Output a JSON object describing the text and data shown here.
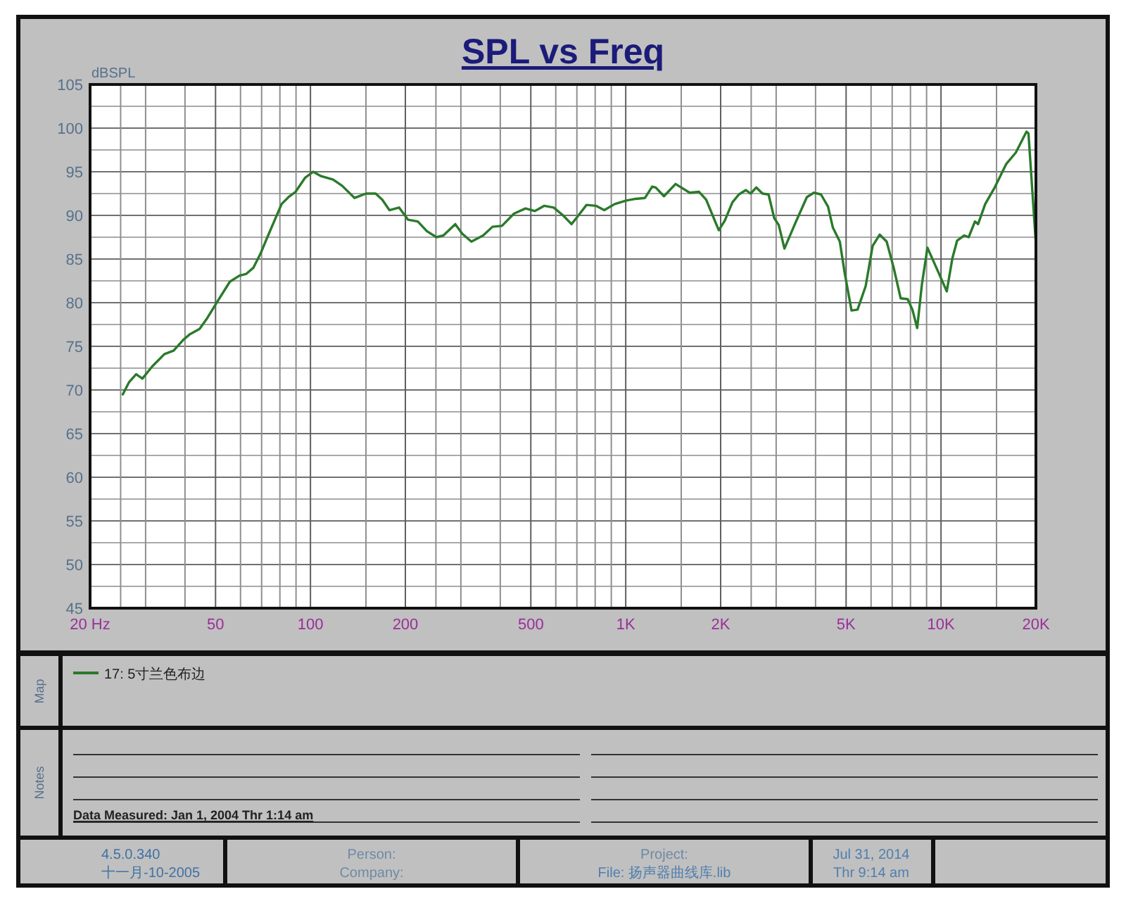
{
  "chart_data": {
    "type": "line",
    "title": "SPL vs Freq",
    "ylabel": "dBSPL",
    "x": [
      25.4,
      26.6,
      28.0,
      29.3,
      31.5,
      34.4,
      36.8,
      39.4,
      41.5,
      44.5,
      46.8,
      51.0,
      55.5,
      59.5,
      62.6,
      65.9,
      69.4,
      73.0,
      76.9,
      81.0,
      85.2,
      89.7,
      96.1,
      102,
      108,
      118,
      126,
      138,
      150,
      161,
      169,
      178,
      191,
      204,
      219,
      234,
      251,
      264,
      288,
      303,
      324,
      353,
      378,
      405,
      442,
      481,
      515,
      552,
      591,
      633,
      673,
      701,
      751,
      804,
      855,
      923,
      1004,
      1076,
      1151,
      1213,
      1245,
      1322,
      1439,
      1595,
      1709,
      1799,
      1973,
      2062,
      2180,
      2285,
      2405,
      2490,
      2594,
      2715,
      2838,
      2957,
      3057,
      3187,
      3449,
      3755,
      3954,
      4162,
      4383,
      4539,
      4776,
      4943,
      5203,
      5436,
      5768,
      6069,
      6389,
      6724,
      7078,
      7450,
      7841,
      8115,
      8403,
      8697,
      9058,
      9806,
      10430,
      10867,
      11247,
      11836,
      12240,
      12813,
      13110,
      13810,
      14800,
      16110,
      17270,
      18670,
      18940,
      20000
    ],
    "series": [
      {
        "name": "17: 5寸兰色布边",
        "color": "#2a7a2a",
        "values": [
          69.5,
          70.9,
          71.8,
          71.3,
          72.7,
          74.1,
          74.5,
          75.7,
          76.4,
          77.0,
          78.1,
          80.3,
          82.4,
          83.1,
          83.3,
          84.0,
          85.6,
          87.5,
          89.4,
          91.3,
          92.1,
          92.7,
          94.3,
          95.0,
          94.5,
          94.1,
          93.4,
          92.0,
          92.5,
          92.5,
          91.8,
          90.6,
          90.9,
          89.5,
          89.3,
          88.2,
          87.5,
          87.7,
          89.0,
          87.9,
          87.0,
          87.7,
          88.7,
          88.8,
          90.2,
          90.8,
          90.5,
          91.1,
          90.9,
          90.0,
          89.0,
          89.8,
          91.2,
          91.1,
          90.6,
          91.3,
          91.7,
          91.9,
          92.0,
          93.3,
          93.2,
          92.2,
          93.6,
          92.6,
          92.7,
          91.8,
          88.3,
          89.4,
          91.5,
          92.4,
          92.9,
          92.5,
          93.2,
          92.5,
          92.4,
          89.7,
          88.9,
          86.2,
          89.1,
          92.1,
          92.6,
          92.4,
          91.0,
          88.6,
          87.0,
          83.5,
          79.1,
          79.2,
          81.9,
          86.5,
          87.8,
          87.0,
          84.0,
          80.5,
          80.4,
          79.2,
          77.1,
          82.1,
          86.3,
          83.5,
          81.3,
          85.1,
          87.1,
          87.7,
          87.5,
          89.3,
          89.0,
          91.3,
          93.2,
          95.9,
          97.2,
          99.6,
          99.4,
          86.7
        ]
      }
    ],
    "log": "x",
    "xlim": [
      20,
      20000
    ],
    "xticks": [
      {
        "value": 20,
        "label": "20 Hz"
      },
      {
        "value": 25,
        "label": null
      },
      {
        "value": 30,
        "label": null
      },
      {
        "value": 40,
        "label": null
      },
      50,
      {
        "value": 60,
        "label": null
      },
      {
        "value": 70,
        "label": null
      },
      {
        "value": 80,
        "label": null
      },
      {
        "value": 90,
        "label": null
      },
      100,
      {
        "value": 150,
        "label": null
      },
      200,
      {
        "value": 250,
        "label": null
      },
      {
        "value": 300,
        "label": null
      },
      {
        "value": 400,
        "label": null
      },
      500,
      {
        "value": 600,
        "label": null
      },
      {
        "value": 700,
        "label": null
      },
      {
        "value": 800,
        "label": null
      },
      {
        "value": 900,
        "label": null
      },
      {
        "value": 1000,
        "label": "1K"
      },
      {
        "value": 1500,
        "label": null
      },
      {
        "value": 2000,
        "label": "2K"
      },
      {
        "value": 2500,
        "label": null
      },
      {
        "value": 3000,
        "label": null
      },
      {
        "value": 4000,
        "label": null
      },
      {
        "value": 5000,
        "label": "5K"
      },
      {
        "value": 6000,
        "label": null
      },
      {
        "value": 7000,
        "label": null
      },
      {
        "value": 8000,
        "label": null
      },
      {
        "value": 9000,
        "label": null
      },
      {
        "value": 10000,
        "label": "10K"
      },
      {
        "value": 15000,
        "label": null
      },
      {
        "value": 20000,
        "label": "20K"
      }
    ],
    "ylim": [
      45,
      105
    ],
    "yticks": [
      45,
      {
        "value": 47.5,
        "label": null
      },
      50,
      {
        "value": 52.5,
        "label": null
      },
      55,
      {
        "value": 57.5,
        "label": null
      },
      60,
      {
        "value": 62.5,
        "label": null
      },
      65,
      {
        "value": 67.5,
        "label": null
      },
      70,
      {
        "value": 72.5,
        "label": null
      },
      75,
      {
        "value": 77.5,
        "label": null
      },
      80,
      {
        "value": 82.5,
        "label": null
      },
      85,
      {
        "value": 87.5,
        "label": null
      },
      90,
      {
        "value": 92.5,
        "label": null
      },
      95,
      {
        "value": 97.5,
        "label": null
      },
      100,
      {
        "value": 102.5,
        "label": null
      },
      105
    ],
    "grid": true,
    "legend": "bottom",
    "annotations": [
      "Map",
      "Notes",
      "Data Measured: Jan 1, 2004 Thr 1:14 am",
      "4.5.0.340",
      "十一月-10-2005",
      "Person:",
      "Company:",
      "Project:",
      "File: 扬声器曲线库.lib",
      "Jul 31, 2014",
      "Thr 9:14 am"
    ]
  }
}
